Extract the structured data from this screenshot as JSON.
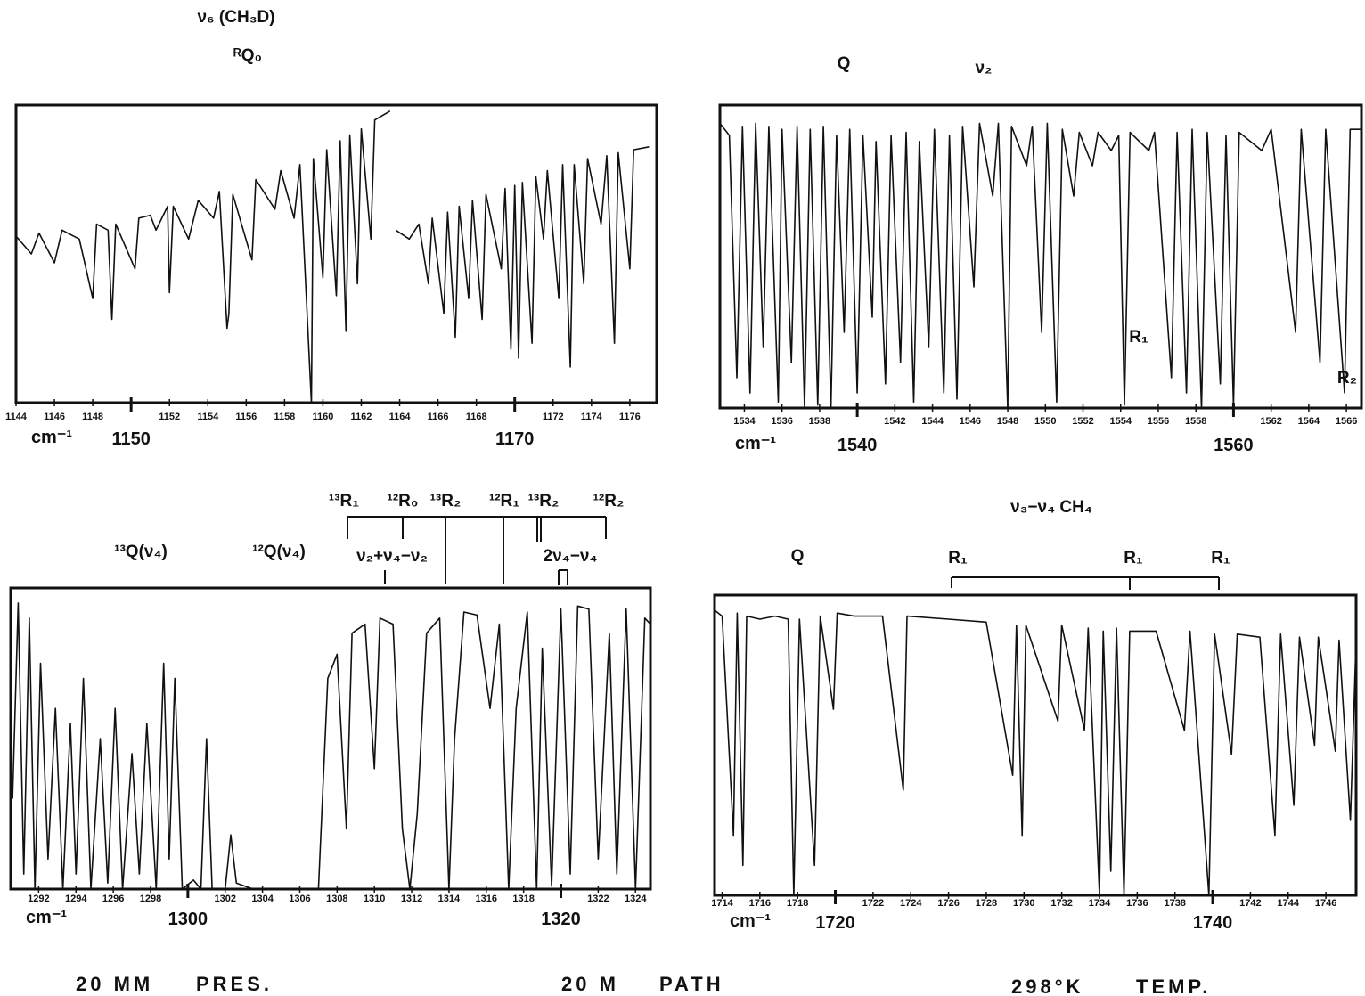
{
  "chart_data": [
    {
      "type": "line",
      "x_label": "cm⁻¹",
      "annotations": [
        "ν₆ (CH₃D)",
        "ᴿQ₀"
      ],
      "xlim": [
        1144,
        1177.4
      ],
      "ylim": [
        0,
        100
      ],
      "xticks": [
        1144,
        1146,
        1148,
        1152,
        1154,
        1156,
        1158,
        1160,
        1162,
        1164,
        1166,
        1168,
        1172,
        1174,
        1176
      ],
      "major_xticks": [
        1150,
        1170
      ],
      "series": [
        {
          "color": "#111111",
          "x": [
            1144.0,
            1144.8,
            1145.2,
            1146.0,
            1146.4,
            1147.3,
            1148.0,
            1148.2,
            1148.8,
            1149.0,
            1149.2,
            1150.2,
            1150.4,
            1151.0,
            1151.3,
            1151.9,
            1152.0,
            1152.2,
            1153.0,
            1153.5,
            1154.3,
            1154.6,
            1155.0,
            1155.1,
            1155.3,
            1156.3,
            1156.5,
            1157.5,
            1157.8,
            1158.5,
            1158.8,
            1159.4,
            1159.5,
            1160.0,
            1160.2,
            1160.7,
            1160.9,
            1161.2,
            1161.4,
            1161.8,
            1162.0,
            1162.5,
            1162.7,
            1163.5,
            1163.6,
            1163.8,
            1164.5,
            1165.0,
            1165.5,
            1165.7,
            1166.3,
            1166.5,
            1166.9,
            1167.1,
            1167.6,
            1167.8,
            1168.3,
            1168.5,
            1169.3,
            1169.5,
            1169.8,
            1170.0,
            1170.2,
            1170.4,
            1170.9,
            1171.1,
            1171.5,
            1171.7,
            1172.3,
            1172.5,
            1172.9,
            1173.1,
            1173.6,
            1173.8,
            1174.5,
            1174.8,
            1175.2,
            1175.4,
            1176.0,
            1176.2,
            1177.0
          ],
          "values": [
            56,
            50,
            57,
            47,
            58,
            55,
            35,
            60,
            58,
            28,
            60,
            45,
            62,
            63,
            58,
            66,
            37,
            66,
            55,
            68,
            62,
            71,
            25,
            30,
            70,
            48,
            75,
            65,
            78,
            62,
            80,
            0,
            82,
            42,
            85,
            36,
            88,
            24,
            90,
            40,
            92,
            55,
            95,
            98,
            null,
            58,
            55,
            60,
            40,
            62,
            30,
            64,
            22,
            66,
            35,
            68,
            28,
            70,
            45,
            72,
            18,
            73,
            15,
            74,
            20,
            76,
            55,
            78,
            35,
            80,
            12,
            80,
            40,
            82,
            60,
            83,
            20,
            84,
            45,
            85,
            86
          ]
        }
      ]
    },
    {
      "type": "line",
      "x_label": "cm⁻¹",
      "annotations": [
        "Q",
        "ν₂",
        "R₁",
        "R₂"
      ],
      "xlim": [
        1532.7,
        1566.8
      ],
      "ylim": [
        0,
        100
      ],
      "xticks": [
        1534,
        1536,
        1538,
        1542,
        1544,
        1546,
        1548,
        1550,
        1552,
        1554,
        1556,
        1558,
        1562,
        1564,
        1566
      ],
      "major_xticks": [
        1540,
        1560
      ],
      "series": [
        {
          "color": "#111111",
          "x": [
            1532.7,
            1533.2,
            1533.6,
            1533.9,
            1534.3,
            1534.6,
            1535.0,
            1535.3,
            1535.8,
            1536.0,
            1536.5,
            1536.8,
            1537.2,
            1537.5,
            1537.9,
            1538.2,
            1538.6,
            1538.9,
            1539.3,
            1539.6,
            1540.0,
            1540.3,
            1540.8,
            1541.0,
            1541.5,
            1541.8,
            1542.3,
            1542.6,
            1543.0,
            1543.3,
            1543.8,
            1544.1,
            1544.6,
            1544.9,
            1545.3,
            1545.6,
            1546.2,
            1546.5,
            1547.2,
            1547.5,
            1548.0,
            1548.2,
            1549.0,
            1549.3,
            1549.8,
            1550.1,
            1550.6,
            1550.9,
            1551.5,
            1551.8,
            1552.5,
            1552.8,
            1553.5,
            1553.9,
            1554.2,
            1554.5,
            1555.5,
            1555.8,
            1556.7,
            1557.0,
            1557.5,
            1557.8,
            1558.3,
            1558.6,
            1559.3,
            1559.6,
            1560.0,
            1560.3,
            1561.5,
            1562.0,
            1563.3,
            1563.6,
            1564.6,
            1564.9,
            1565.9,
            1566.2,
            1566.8
          ],
          "values": [
            94,
            90,
            10,
            93,
            5,
            94,
            20,
            93,
            2,
            92,
            15,
            93,
            0,
            92,
            1,
            93,
            0,
            90,
            25,
            92,
            5,
            90,
            30,
            88,
            8,
            90,
            15,
            91,
            2,
            88,
            20,
            92,
            5,
            90,
            3,
            93,
            40,
            94,
            70,
            94,
            0,
            93,
            80,
            93,
            25,
            94,
            2,
            92,
            70,
            91,
            80,
            91,
            85,
            90,
            1,
            91,
            85,
            91,
            10,
            91,
            5,
            92,
            0,
            91,
            8,
            90,
            1,
            91,
            85,
            92,
            25,
            92,
            15,
            92,
            5,
            92,
            92
          ]
        }
      ]
    },
    {
      "type": "line",
      "x_label": "cm⁻¹",
      "annotations": [
        "¹³Q(ν₄)",
        "¹²Q(ν₄)",
        "¹³R₁",
        "¹²R₀",
        "¹³R₂",
        "¹²R₁",
        "¹³R₂",
        "¹²R₂",
        "ν₂+ν₄−ν₂",
        "2ν₄−ν₄"
      ],
      "xlim": [
        1290.5,
        1324.8
      ],
      "ylim": [
        0,
        100
      ],
      "xticks": [
        1292,
        1294,
        1296,
        1298,
        1302,
        1304,
        1306,
        1308,
        1310,
        1312,
        1314,
        1316,
        1318,
        1322,
        1324
      ],
      "major_xticks": [
        1300,
        1320
      ],
      "series": [
        {
          "color": "#111111",
          "x": [
            1290.6,
            1290.9,
            1291.2,
            1291.5,
            1291.8,
            1292.1,
            1292.5,
            1292.9,
            1293.3,
            1293.7,
            1294.0,
            1294.4,
            1294.8,
            1295.3,
            1295.7,
            1296.1,
            1296.5,
            1297.0,
            1297.4,
            1297.8,
            1298.3,
            1298.7,
            1299.0,
            1299.3,
            1299.7,
            1300.3,
            1300.7,
            1301.0,
            1301.3,
            1302.0,
            1302.3,
            1302.6,
            1303.5,
            1307.0,
            1307.5,
            1308.0,
            1308.5,
            1308.8,
            1309.5,
            1310.0,
            1310.3,
            1311.0,
            1311.5,
            1311.9,
            1312.3,
            1312.8,
            1313.5,
            1314.0,
            1314.3,
            1314.8,
            1315.5,
            1316.2,
            1316.7,
            1317.2,
            1317.6,
            1318.2,
            1318.7,
            1319.0,
            1319.5,
            1320.0,
            1320.5,
            1320.9,
            1321.5,
            1322.0,
            1322.6,
            1323.0,
            1323.5,
            1324.0,
            1324.5,
            1324.8
          ],
          "values": [
            30,
            95,
            5,
            90,
            0,
            75,
            10,
            60,
            0,
            55,
            5,
            70,
            0,
            50,
            2,
            60,
            0,
            45,
            5,
            55,
            0,
            75,
            10,
            70,
            0,
            3,
            0,
            50,
            0,
            0,
            18,
            2,
            0,
            0,
            70,
            78,
            20,
            85,
            88,
            40,
            90,
            88,
            20,
            0,
            25,
            85,
            90,
            0,
            50,
            92,
            91,
            60,
            88,
            0,
            60,
            92,
            0,
            80,
            1,
            93,
            5,
            94,
            93,
            10,
            85,
            5,
            93,
            0,
            90,
            88
          ]
        }
      ]
    },
    {
      "type": "line",
      "x_label": "cm⁻¹",
      "annotations": [
        "ν₃−ν₄ CH₄",
        "Q",
        "R₁",
        "R₁",
        "R₁"
      ],
      "xlim": [
        1713.6,
        1747.6
      ],
      "ylim": [
        0,
        100
      ],
      "xticks": [
        1714,
        1716,
        1718,
        1722,
        1724,
        1726,
        1728,
        1730,
        1732,
        1734,
        1736,
        1738,
        1742,
        1744,
        1746
      ],
      "major_xticks": [
        1720,
        1740
      ],
      "series": [
        {
          "color": "#111111",
          "x": [
            1713.6,
            1714.0,
            1714.6,
            1714.8,
            1715.1,
            1715.3,
            1716.0,
            1716.8,
            1717.5,
            1717.8,
            1718.1,
            1718.9,
            1719.2,
            1719.9,
            1720.1,
            1721.0,
            1722.5,
            1723.6,
            1723.8,
            1726.0,
            1728.0,
            1729.4,
            1729.6,
            1729.9,
            1730.1,
            1731.8,
            1732.0,
            1733.2,
            1733.4,
            1734.0,
            1734.2,
            1734.6,
            1734.9,
            1735.3,
            1735.6,
            1737.0,
            1738.5,
            1738.8,
            1739.8,
            1740.1,
            1741.0,
            1741.3,
            1742.5,
            1743.3,
            1743.6,
            1744.3,
            1744.6,
            1745.4,
            1745.6,
            1746.5,
            1746.7,
            1747.3,
            1747.6
          ],
          "values": [
            95,
            93,
            20,
            94,
            10,
            93,
            92,
            93,
            92,
            0,
            92,
            10,
            93,
            62,
            94,
            93,
            93,
            35,
            93,
            92,
            91,
            40,
            90,
            20,
            90,
            58,
            90,
            55,
            89,
            0,
            88,
            8,
            89,
            0,
            88,
            88,
            55,
            88,
            0,
            87,
            47,
            87,
            86,
            20,
            87,
            30,
            86,
            50,
            86,
            48,
            85,
            25,
            85
          ]
        }
      ]
    }
  ],
  "footer": [
    "20 MM",
    "PRES.",
    "20 M",
    "PATH",
    "298°K",
    "TEMP."
  ]
}
